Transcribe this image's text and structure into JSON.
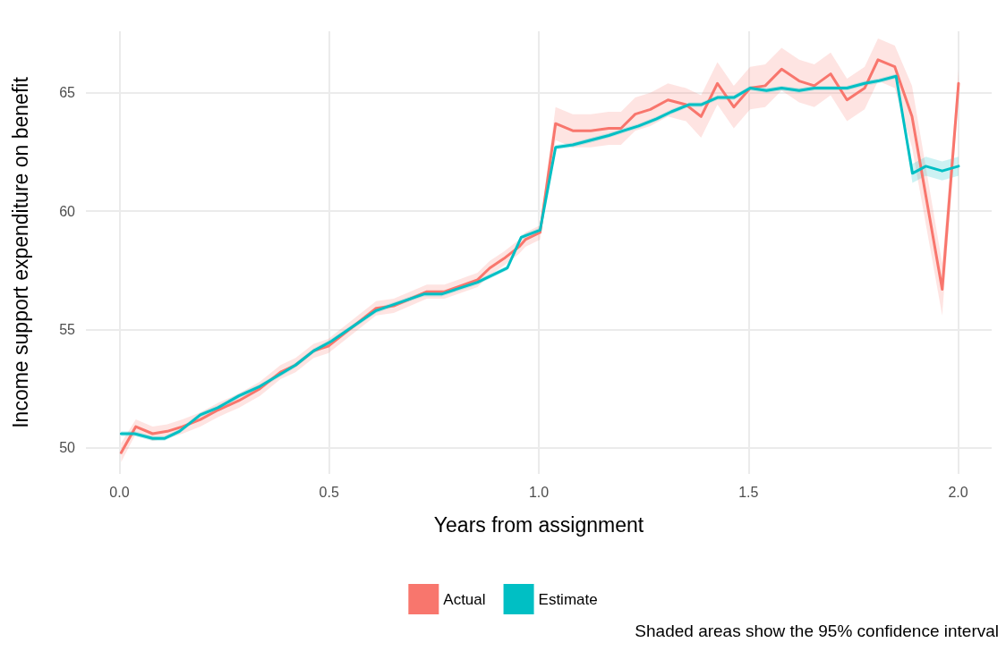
{
  "chart_data": {
    "type": "line",
    "xlabel": "Years from assignment",
    "ylabel": "Income support expenditure on benefit",
    "annotations": [
      "Shaded areas show the 95% confidence interval"
    ],
    "xlim": [
      -0.08,
      2.08
    ],
    "xticks": [
      {
        "value": 0,
        "label": "0.0"
      },
      {
        "value": 0.5,
        "label": "0.5"
      },
      {
        "value": 1,
        "label": "1.0"
      },
      {
        "value": 1.5,
        "label": "1.5"
      },
      {
        "value": 2,
        "label": "2.0"
      }
    ],
    "ylim": [
      48.9,
      67.6
    ],
    "yticks": [
      50,
      55,
      60,
      65
    ],
    "grid": true,
    "legend": "bottom",
    "marker": "none",
    "line_style": "solid",
    "series": [
      {
        "name": "Actual",
        "color": "#f8766d",
        "x": [
          0.004,
          0.039,
          0.079,
          0.114,
          0.15,
          0.193,
          0.235,
          0.285,
          0.335,
          0.384,
          0.42,
          0.463,
          0.498,
          0.612,
          0.654,
          0.733,
          0.775,
          0.854,
          0.883,
          0.917,
          0.953,
          0.968,
          1.003,
          1.04,
          1.081,
          1.124,
          1.167,
          1.196,
          1.23,
          1.266,
          1.308,
          1.351,
          1.387,
          1.426,
          1.465,
          1.504,
          1.54,
          1.579,
          1.621,
          1.657,
          1.696,
          1.735,
          1.777,
          1.809,
          1.849,
          1.89,
          1.962,
          2.001
        ],
        "values": [
          49.8,
          50.9,
          50.6,
          50.7,
          50.9,
          51.2,
          51.6,
          52.0,
          52.5,
          53.2,
          53.5,
          54.1,
          54.3,
          55.9,
          56.0,
          56.6,
          56.6,
          57.1,
          57.6,
          58.0,
          58.5,
          58.8,
          59.1,
          63.7,
          63.4,
          63.4,
          63.5,
          63.5,
          64.1,
          64.3,
          64.7,
          64.5,
          64.0,
          65.4,
          64.4,
          65.2,
          65.3,
          66.0,
          65.5,
          65.3,
          65.8,
          64.7,
          65.2,
          66.4,
          66.1,
          64.0,
          56.7,
          65.4
        ],
        "lower": [
          49.4,
          50.6,
          50.3,
          50.4,
          50.6,
          50.9,
          51.3,
          51.7,
          52.2,
          52.9,
          53.2,
          53.8,
          54.0,
          55.6,
          55.7,
          56.3,
          56.3,
          56.8,
          57.3,
          57.7,
          58.2,
          58.5,
          58.8,
          63.0,
          62.7,
          62.7,
          62.8,
          62.8,
          63.4,
          63.6,
          64.0,
          63.8,
          63.1,
          64.5,
          63.5,
          64.3,
          64.4,
          65.1,
          64.6,
          64.4,
          64.9,
          63.8,
          64.3,
          65.5,
          65.2,
          62.7,
          55.6,
          64.8
        ],
        "upper": [
          50.2,
          51.2,
          50.9,
          51.0,
          51.2,
          51.5,
          51.9,
          52.3,
          52.8,
          53.5,
          53.8,
          54.4,
          54.6,
          56.2,
          56.3,
          56.9,
          56.9,
          57.4,
          57.9,
          58.3,
          58.8,
          59.1,
          59.4,
          64.4,
          64.1,
          64.1,
          64.2,
          64.2,
          64.8,
          65.0,
          65.4,
          65.2,
          64.9,
          66.3,
          65.3,
          66.1,
          66.2,
          66.9,
          66.4,
          66.2,
          66.7,
          65.6,
          66.1,
          67.3,
          67.0,
          65.3,
          57.8,
          66.0
        ]
      },
      {
        "name": "Estimate",
        "color": "#00bfc4",
        "x": [
          0.004,
          0.036,
          0.079,
          0.107,
          0.143,
          0.193,
          0.235,
          0.285,
          0.335,
          0.42,
          0.463,
          0.505,
          0.612,
          0.726,
          0.768,
          0.854,
          0.925,
          0.958,
          1.003,
          1.04,
          1.081,
          1.124,
          1.167,
          1.202,
          1.238,
          1.281,
          1.316,
          1.358,
          1.387,
          1.426,
          1.465,
          1.504,
          1.543,
          1.579,
          1.621,
          1.657,
          1.7,
          1.735,
          1.777,
          1.809,
          1.852,
          1.891,
          1.923,
          1.962,
          2.001
        ],
        "values": [
          50.6,
          50.6,
          50.4,
          50.4,
          50.7,
          51.4,
          51.7,
          52.2,
          52.6,
          53.5,
          54.1,
          54.5,
          55.8,
          56.5,
          56.5,
          57.0,
          57.6,
          58.9,
          59.2,
          62.7,
          62.8,
          63.0,
          63.2,
          63.4,
          63.6,
          63.9,
          64.2,
          64.5,
          64.5,
          64.8,
          64.8,
          65.2,
          65.1,
          65.2,
          65.1,
          65.2,
          65.2,
          65.2,
          65.4,
          65.5,
          65.7,
          61.6,
          61.9,
          61.7,
          61.9
        ],
        "lower": [
          50.5,
          50.5,
          50.3,
          50.3,
          50.6,
          51.3,
          51.6,
          52.1,
          52.5,
          53.4,
          54.0,
          54.4,
          55.7,
          56.4,
          56.4,
          56.9,
          57.5,
          58.8,
          59.1,
          62.6,
          62.7,
          62.9,
          63.1,
          63.3,
          63.5,
          63.8,
          64.1,
          64.4,
          64.4,
          64.7,
          64.7,
          65.1,
          65.0,
          65.1,
          65.0,
          65.1,
          65.1,
          65.1,
          65.3,
          65.4,
          65.6,
          61.2,
          61.5,
          61.3,
          61.5
        ],
        "upper": [
          50.7,
          50.7,
          50.5,
          50.5,
          50.8,
          51.5,
          51.8,
          52.3,
          52.7,
          53.6,
          54.2,
          54.6,
          55.9,
          56.6,
          56.6,
          57.1,
          57.7,
          59.0,
          59.3,
          62.8,
          62.9,
          63.1,
          63.3,
          63.5,
          63.7,
          64.0,
          64.3,
          64.6,
          64.6,
          64.9,
          64.9,
          65.3,
          65.2,
          65.3,
          65.2,
          65.3,
          65.3,
          65.3,
          65.5,
          65.6,
          65.8,
          62.0,
          62.3,
          62.1,
          62.3
        ]
      }
    ]
  }
}
